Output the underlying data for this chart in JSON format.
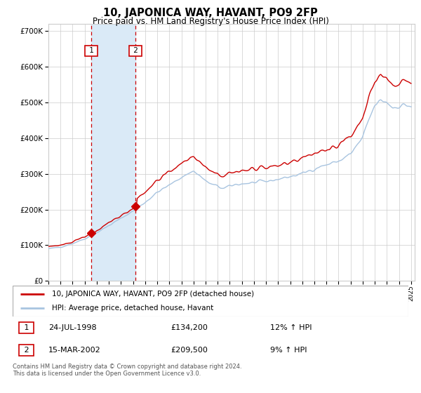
{
  "title": "10, JAPONICA WAY, HAVANT, PO9 2FP",
  "subtitle": "Price paid vs. HM Land Registry's House Price Index (HPI)",
  "legend_line1": "10, JAPONICA WAY, HAVANT, PO9 2FP (detached house)",
  "legend_line2": "HPI: Average price, detached house, Havant",
  "annotation1_date": "24-JUL-1998",
  "annotation1_price": "£134,200",
  "annotation1_hpi": "12% ↑ HPI",
  "annotation2_date": "15-MAR-2002",
  "annotation2_price": "£209,500",
  "annotation2_hpi": "9% ↑ HPI",
  "footer": "Contains HM Land Registry data © Crown copyright and database right 2024.\nThis data is licensed under the Open Government Licence v3.0.",
  "year_start": 1995,
  "year_end": 2025,
  "ylim_min": 0,
  "ylim_max": 720000,
  "yticks": [
    0,
    100000,
    200000,
    300000,
    400000,
    500000,
    600000,
    700000
  ],
  "hpi_color": "#a8c4e0",
  "price_color": "#cc0000",
  "sale1_year": 1998.56,
  "sale1_price": 134200,
  "sale2_year": 2002.21,
  "sale2_price": 209500,
  "vline_color": "#cc0000",
  "shade_color": "#daeaf7",
  "background_color": "#ffffff",
  "grid_color": "#cccccc"
}
